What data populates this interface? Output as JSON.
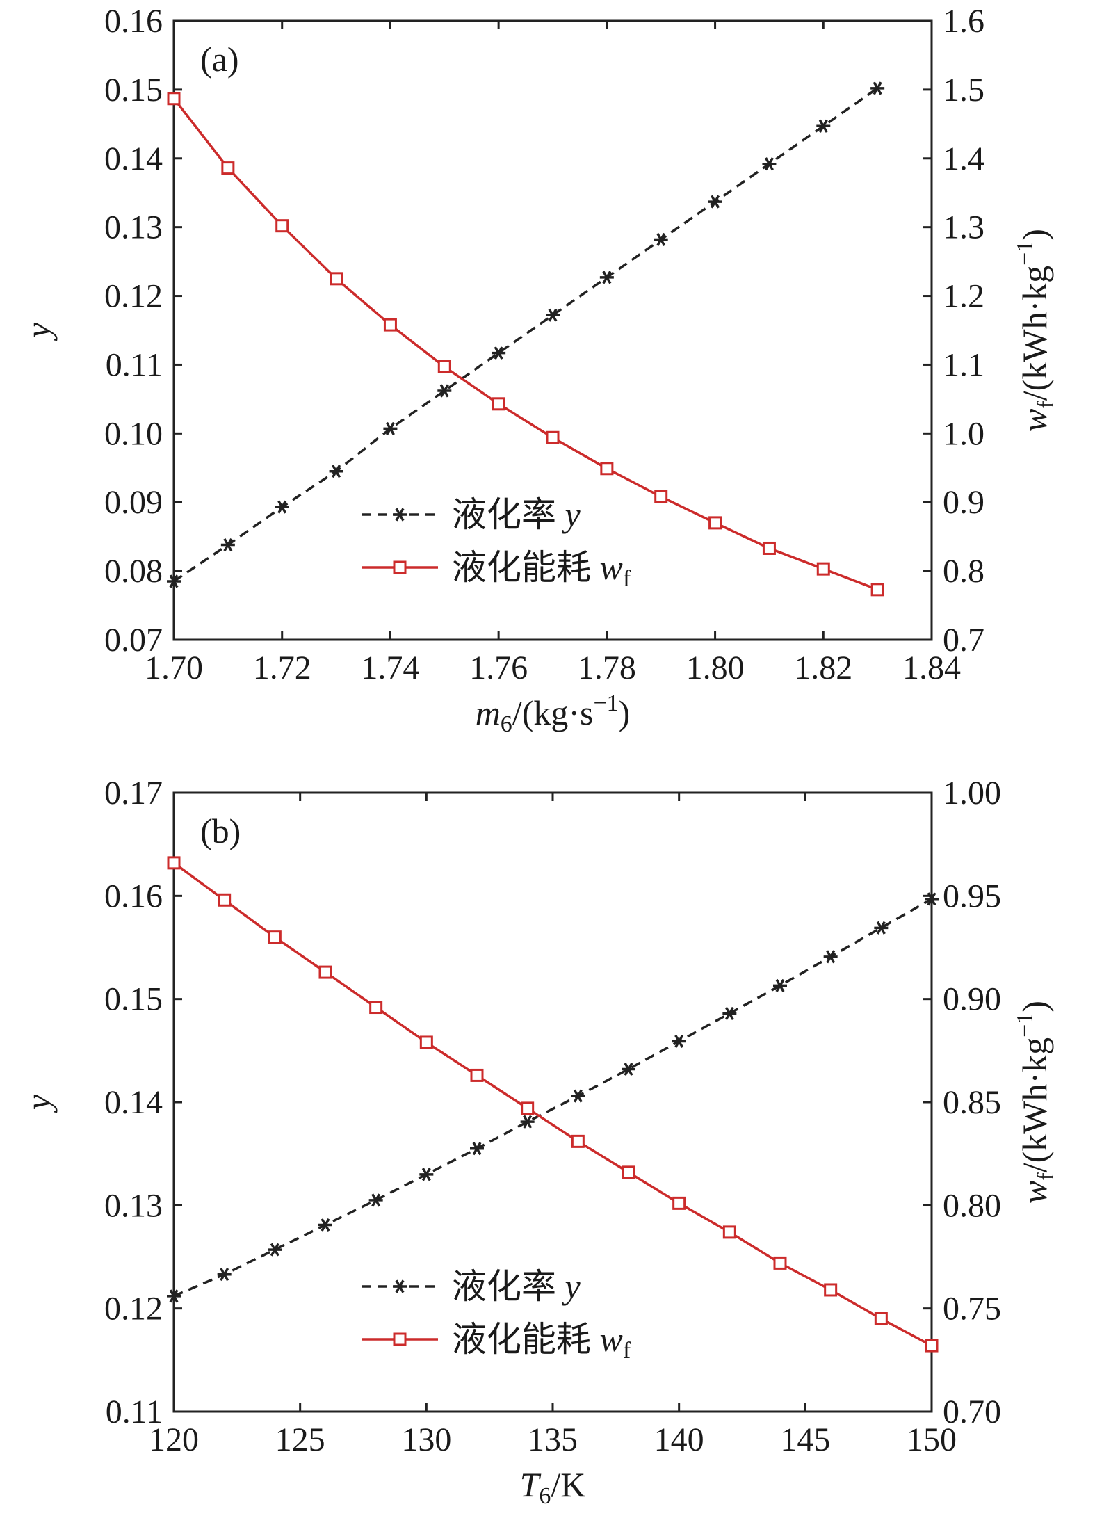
{
  "chart_data": [
    {
      "panel_label": "(a)",
      "type": "line",
      "x": [
        1.7,
        1.71,
        1.72,
        1.73,
        1.74,
        1.75,
        1.76,
        1.77,
        1.78,
        1.79,
        1.8,
        1.81,
        1.82,
        1.83
      ],
      "xlim": [
        1.7,
        1.84
      ],
      "x_ticks": [
        "1.70",
        "1.72",
        "1.74",
        "1.76",
        "1.78",
        "1.80",
        "1.82",
        "1.84"
      ],
      "x_label": {
        "symbol": "m",
        "sub": "6",
        "unit": "/(kg·s",
        "sup": "−1",
        "close": ")"
      },
      "y_left": {
        "label": "y",
        "lim": [
          0.07,
          0.16
        ],
        "ticks": [
          "0.07",
          "0.08",
          "0.09",
          "0.10",
          "0.11",
          "0.12",
          "0.13",
          "0.14",
          "0.15",
          "0.16"
        ]
      },
      "y_right": {
        "label": {
          "symbol": "w",
          "sub": "f",
          "unit": "/(kWh·kg",
          "sup": "−1",
          "close": ")"
        },
        "lim": [
          0.7,
          1.6
        ],
        "ticks": [
          "0.7",
          "0.8",
          "0.9",
          "1.0",
          "1.1",
          "1.2",
          "1.3",
          "1.4",
          "1.5",
          "1.6"
        ]
      },
      "series": [
        {
          "name": "液化率 y",
          "axis": "left",
          "style": "dashed",
          "marker": "asterisk",
          "color": "#222222",
          "values": [
            0.0785,
            0.0838,
            0.0893,
            0.0945,
            0.1007,
            0.1062,
            0.1117,
            0.1172,
            0.1227,
            0.1282,
            0.1337,
            0.1392,
            0.1447,
            0.1502
          ]
        },
        {
          "name": "液化能耗 wf",
          "axis": "right",
          "style": "solid",
          "marker": "square",
          "color": "#cc2b2b",
          "values": [
            1.487,
            1.386,
            1.302,
            1.225,
            1.158,
            1.097,
            1.043,
            0.994,
            0.949,
            0.908,
            0.87,
            0.833,
            0.803,
            0.773
          ]
        }
      ],
      "legend": [
        {
          "text": "液化率 ",
          "var": "y",
          "sub": ""
        },
        {
          "text": "液化能耗 ",
          "var": "w",
          "sub": "f"
        }
      ],
      "legend_position": "lower-center"
    },
    {
      "panel_label": "(b)",
      "type": "line",
      "x": [
        120,
        122,
        124,
        126,
        128,
        130,
        132,
        134,
        136,
        138,
        140,
        142,
        144,
        146,
        148,
        150
      ],
      "xlim": [
        120,
        150
      ],
      "x_ticks": [
        "120",
        "125",
        "130",
        "135",
        "140",
        "145",
        "150"
      ],
      "x_label": {
        "symbol": "T",
        "sub": "6",
        "unit": "/K",
        "sup": "",
        "close": ""
      },
      "y_left": {
        "label": "y",
        "lim": [
          0.11,
          0.17
        ],
        "ticks": [
          "0.11",
          "0.12",
          "0.13",
          "0.14",
          "0.15",
          "0.16",
          "0.17"
        ]
      },
      "y_right": {
        "label": {
          "symbol": "w",
          "sub": "f",
          "unit": "/(kWh·kg",
          "sup": "−1",
          "close": ")"
        },
        "lim": [
          0.7,
          1.0
        ],
        "ticks": [
          "0.70",
          "0.75",
          "0.80",
          "0.85",
          "0.90",
          "0.95",
          "1.00"
        ]
      },
      "series": [
        {
          "name": "液化率 y",
          "axis": "left",
          "style": "dashed",
          "marker": "asterisk",
          "color": "#222222",
          "values": [
            0.1212,
            0.1233,
            0.1257,
            0.1281,
            0.1305,
            0.133,
            0.1355,
            0.1381,
            0.1406,
            0.1432,
            0.1459,
            0.1486,
            0.1513,
            0.1541,
            0.1569,
            0.1597
          ]
        },
        {
          "name": "液化能耗 wf",
          "axis": "right",
          "style": "solid",
          "marker": "square",
          "color": "#cc2b2b",
          "values": [
            0.966,
            0.948,
            0.93,
            0.913,
            0.896,
            0.879,
            0.863,
            0.847,
            0.831,
            0.816,
            0.801,
            0.787,
            0.772,
            0.759,
            0.745,
            0.732
          ]
        }
      ],
      "legend": [
        {
          "text": "液化率 ",
          "var": "y",
          "sub": ""
        },
        {
          "text": "液化能耗 ",
          "var": "w",
          "sub": "f"
        }
      ],
      "legend_position": "lower-center"
    }
  ]
}
